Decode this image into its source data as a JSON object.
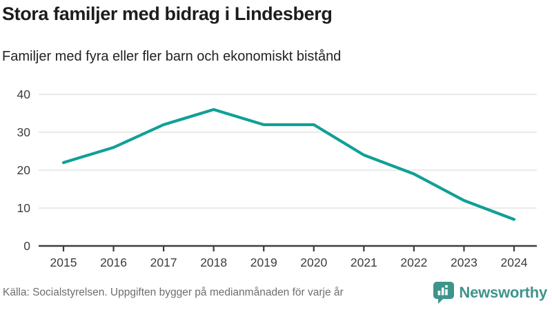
{
  "header": {
    "title": "Stora familjer med bidrag i Lindesberg",
    "subtitle": "Familjer med fyra eller fler barn och ekonomiskt bistånd"
  },
  "chart_data": {
    "type": "line",
    "title": "Stora familjer med bidrag i Lindesberg",
    "subtitle": "Familjer med fyra eller fler barn och ekonomiskt bistånd",
    "categories": [
      "2015",
      "2016",
      "2017",
      "2018",
      "2019",
      "2020",
      "2021",
      "2022",
      "2023",
      "2024"
    ],
    "values": [
      22,
      26,
      32,
      36,
      32,
      32,
      24,
      19,
      12,
      7
    ],
    "series_name": "Familjer med fyra eller fler barn och ekonomiskt bistånd",
    "xlabel": "",
    "ylabel": "",
    "ylim": [
      0,
      40
    ],
    "yticks": [
      0,
      10,
      20,
      30,
      40
    ],
    "grid": "horizontal",
    "legend": "none",
    "line_color": "#10a096",
    "grid_color": "#e3e3e3",
    "axis_color": "#3d3d3d",
    "tick_label_color": "#3d3d3d"
  },
  "footer": {
    "source": "Källa: Socialstyrelsen. Uppgiften bygger på medianmånaden för varje år",
    "brand_name": "Newsworthy",
    "brand_color": "#3e948b"
  }
}
